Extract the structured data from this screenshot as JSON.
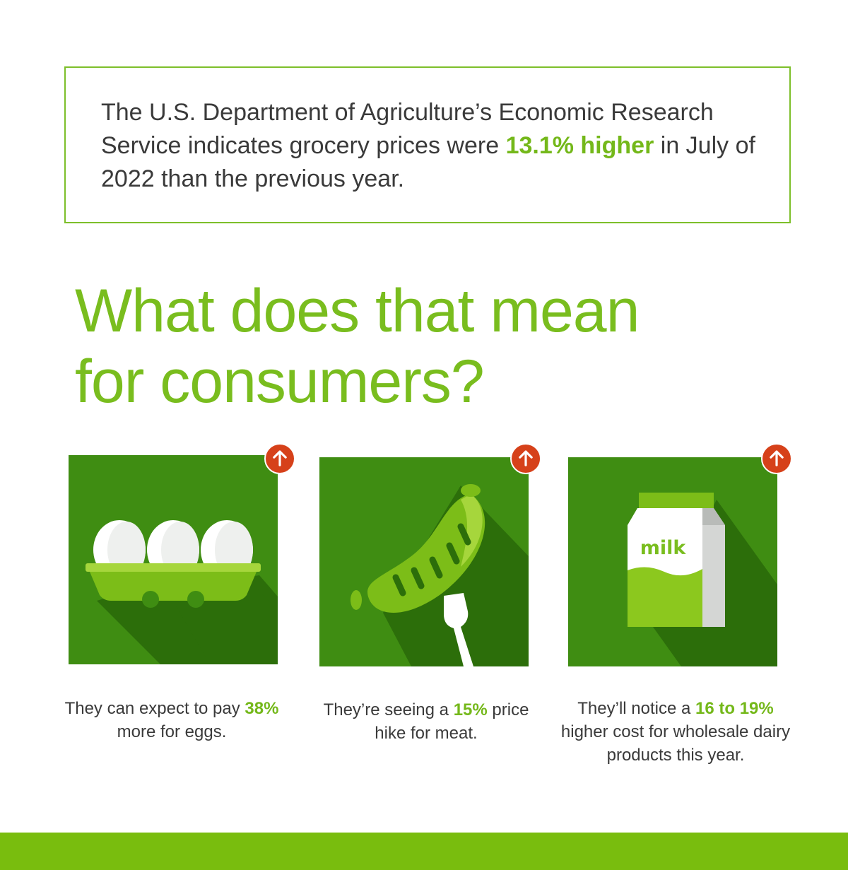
{
  "intro": {
    "text_before": "The U.S. Department of Agriculture’s Economic Research Service indicates grocery prices were ",
    "highlight": "13.1% higher",
    "text_after": " in July of 2022 than the previous year."
  },
  "heading": {
    "line1": "What does that mean",
    "line2": "for consumers?"
  },
  "cards": [
    {
      "icon": "egg-carton-icon",
      "caption_before": "They can expect to pay ",
      "highlight": "38%",
      "caption_after": " more for eggs."
    },
    {
      "icon": "sausage-on-fork-icon",
      "caption_before": "They’re seeing a ",
      "highlight": "15%",
      "caption_after": " price hike for meat."
    },
    {
      "icon": "milk-carton-icon",
      "icon_label": "milk",
      "caption_before": "They’ll notice a ",
      "highlight": "16 to 19%",
      "caption_after": " higher cost for wholesale dairy products this year."
    }
  ],
  "badge_icon": "arrow-up-icon",
  "colors": {
    "accent_green": "#79bd1e",
    "tile_green": "#3f8d12",
    "badge_red": "#d6411a",
    "footer_green": "#79bd0e"
  }
}
